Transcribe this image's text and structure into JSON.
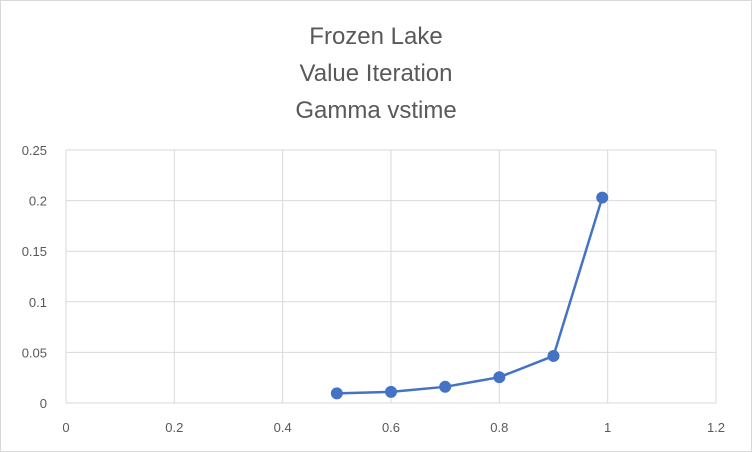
{
  "chart_data": {
    "type": "scatter",
    "title_lines": [
      "Frozen Lake",
      "Value Iteration",
      "Gamma vstime"
    ],
    "xlabel": "",
    "ylabel": "",
    "xlim": [
      0,
      1.2
    ],
    "ylim": [
      0,
      0.25
    ],
    "x_ticks": [
      "0",
      "0.2",
      "0.4",
      "0.6",
      "0.8",
      "1",
      "1.2"
    ],
    "y_ticks": [
      "0",
      "0.05",
      "0.1",
      "0.15",
      "0.2",
      "0.25"
    ],
    "grid": true,
    "legend": "none",
    "series": [
      {
        "x": [
          0.5,
          0.6,
          0.7,
          0.8,
          0.9,
          0.99
        ],
        "y": [
          0.0095,
          0.011,
          0.016,
          0.0255,
          0.0465,
          0.203
        ],
        "style": "lines-and-markers",
        "color": "#4472C4"
      }
    ]
  }
}
